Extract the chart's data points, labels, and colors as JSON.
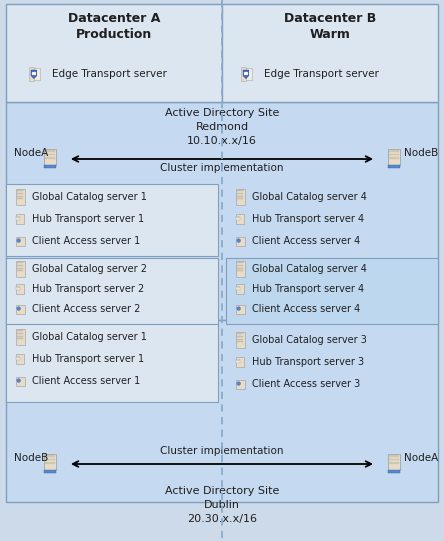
{
  "bg_outer": "#ccdaea",
  "bg_dc_header": "#dce6f1",
  "bg_ad_site": "#c5d9f1",
  "bg_group_light": "#dce6f1",
  "bg_group_inner": "#bdd7ee",
  "border": "#7f9fbc",
  "text_color": "#1f1f1f",
  "title_dc_a": "Datacenter A\nProduction",
  "title_dc_b": "Datacenter B\nWarm",
  "edge_transport": "Edge Transport server",
  "ad_site_redmond": "Active Directory Site\nRedmond\n10.10.x.x/16",
  "ad_site_dublin": "Active Directory Site\nDublin\n20.30.x.x/16",
  "cluster_label": "Cluster implementation",
  "left_col_top": [
    "Global Catalog server 1",
    "Hub Transport server 1",
    "Client Access server 1"
  ],
  "left_col_mid": [
    "Global Catalog server 2",
    "Hub Transport server 2",
    "Client Access server 2"
  ],
  "left_col_bot": [
    "Global Catalog server 1",
    "Hub Transport server 1",
    "Client Access server 1"
  ],
  "right_col_top": [
    "Global Catalog server 4",
    "Hub Transport server 4",
    "Client Access server 4"
  ],
  "right_col_mid": [
    "Global Catalog server 4",
    "Hub Transport server 4",
    "Client Access server 4"
  ],
  "right_col_bot": [
    "Global Catalog server 3",
    "Hub Transport server 3",
    "Client Access server 3"
  ],
  "node_a_top": "NodeA",
  "node_b_top": "NodeB",
  "node_b_bot": "NodeB",
  "node_a_bot": "NodeA"
}
